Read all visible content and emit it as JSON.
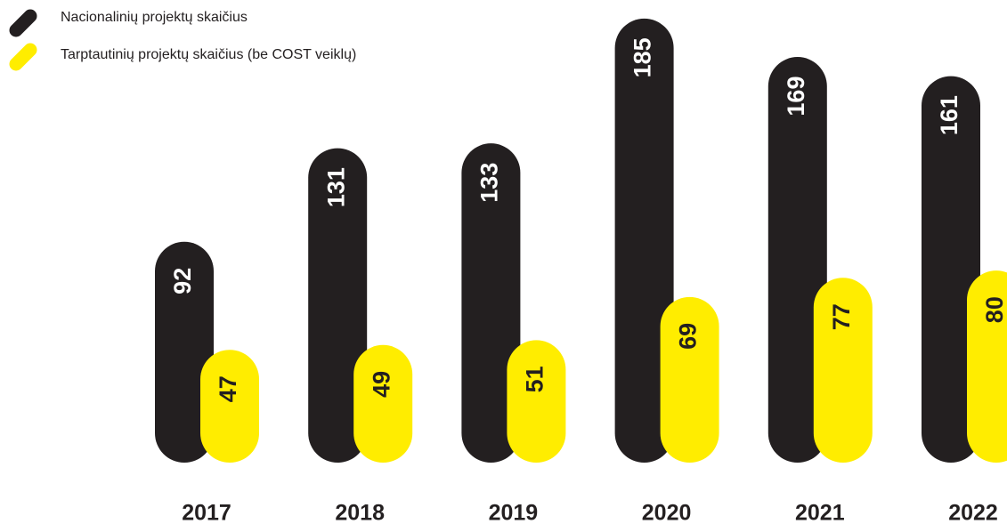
{
  "chart_data": {
    "type": "bar",
    "categories": [
      "2017",
      "2018",
      "2019",
      "2020",
      "2021",
      "2022"
    ],
    "series": [
      {
        "name": "Nacionalinių projektų skaičius",
        "color": "#231f20",
        "values": [
          92,
          131,
          133,
          185,
          169,
          161
        ]
      },
      {
        "name": "Tarptautinių projektų skaičius (be COST veiklų)",
        "color": "#ffed00",
        "values": [
          47,
          49,
          51,
          69,
          77,
          80
        ]
      }
    ],
    "ylim": [
      0,
      192
    ]
  }
}
